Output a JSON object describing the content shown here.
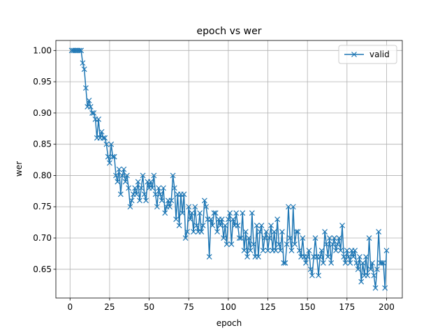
{
  "chart_data": {
    "type": "line",
    "title": "epoch vs wer",
    "xlabel": "epoch",
    "ylabel": "wer",
    "x": [
      1,
      2,
      3,
      4,
      5,
      6,
      7,
      8,
      9,
      10,
      11,
      12,
      13,
      14,
      15,
      16,
      17,
      18,
      19,
      20,
      21,
      22,
      23,
      24,
      25,
      26,
      27,
      28,
      29,
      30,
      31,
      32,
      33,
      34,
      35,
      36,
      37,
      38,
      39,
      40,
      41,
      42,
      43,
      44,
      45,
      46,
      47,
      48,
      49,
      50,
      51,
      52,
      53,
      54,
      55,
      56,
      57,
      58,
      59,
      60,
      61,
      62,
      63,
      64,
      65,
      66,
      67,
      68,
      69,
      70,
      71,
      72,
      73,
      74,
      75,
      76,
      77,
      78,
      79,
      80,
      81,
      82,
      83,
      84,
      85,
      86,
      87,
      88,
      89,
      90,
      91,
      92,
      93,
      94,
      95,
      96,
      97,
      98,
      99,
      100,
      101,
      102,
      103,
      104,
      105,
      106,
      107,
      108,
      109,
      110,
      111,
      112,
      113,
      114,
      115,
      116,
      117,
      118,
      119,
      120,
      121,
      122,
      123,
      124,
      125,
      126,
      127,
      128,
      129,
      130,
      131,
      132,
      133,
      134,
      135,
      136,
      137,
      138,
      139,
      140,
      141,
      142,
      143,
      144,
      145,
      146,
      147,
      148,
      149,
      150,
      151,
      152,
      153,
      154,
      155,
      156,
      157,
      158,
      159,
      160,
      161,
      162,
      163,
      164,
      165,
      166,
      167,
      168,
      169,
      170,
      171,
      172,
      173,
      174,
      175,
      176,
      177,
      178,
      179,
      180,
      181,
      182,
      183,
      184,
      185,
      186,
      187,
      188,
      189,
      190,
      191,
      192,
      193,
      194,
      195,
      196,
      197,
      198,
      199,
      200
    ],
    "series": [
      {
        "name": "valid",
        "color": "#1f77b4",
        "values": [
          1.0,
          1.0,
          1.0,
          1.0,
          1.0,
          1.0,
          1.0,
          0.98,
          0.97,
          0.94,
          0.91,
          0.92,
          0.91,
          0.9,
          0.9,
          0.89,
          0.86,
          0.89,
          0.86,
          0.87,
          0.86,
          0.86,
          0.85,
          0.83,
          0.82,
          0.85,
          0.83,
          0.83,
          0.8,
          0.79,
          0.81,
          0.77,
          0.8,
          0.81,
          0.79,
          0.8,
          0.78,
          0.75,
          0.76,
          0.77,
          0.78,
          0.77,
          0.79,
          0.76,
          0.78,
          0.8,
          0.77,
          0.76,
          0.79,
          0.78,
          0.79,
          0.78,
          0.8,
          0.77,
          0.75,
          0.78,
          0.77,
          0.76,
          0.78,
          0.74,
          0.75,
          0.76,
          0.75,
          0.76,
          0.8,
          0.78,
          0.73,
          0.77,
          0.72,
          0.77,
          0.74,
          0.77,
          0.7,
          0.71,
          0.75,
          0.73,
          0.74,
          0.71,
          0.75,
          0.72,
          0.71,
          0.74,
          0.71,
          0.72,
          0.76,
          0.75,
          0.73,
          0.67,
          0.73,
          0.72,
          0.74,
          0.74,
          0.71,
          0.73,
          0.72,
          0.73,
          0.7,
          0.72,
          0.69,
          0.73,
          0.74,
          0.69,
          0.73,
          0.72,
          0.74,
          0.72,
          0.7,
          0.7,
          0.74,
          0.68,
          0.71,
          0.67,
          0.7,
          0.68,
          0.74,
          0.69,
          0.67,
          0.72,
          0.67,
          0.71,
          0.72,
          0.68,
          0.7,
          0.71,
          0.68,
          0.7,
          0.72,
          0.68,
          0.71,
          0.68,
          0.73,
          0.69,
          0.68,
          0.71,
          0.66,
          0.66,
          0.69,
          0.75,
          0.7,
          0.68,
          0.75,
          0.69,
          0.71,
          0.71,
          0.68,
          0.67,
          0.7,
          0.67,
          0.66,
          0.67,
          0.68,
          0.65,
          0.64,
          0.67,
          0.7,
          0.67,
          0.64,
          0.67,
          0.68,
          0.66,
          0.71,
          0.69,
          0.67,
          0.7,
          0.66,
          0.69,
          0.7,
          0.68,
          0.69,
          0.7,
          0.68,
          0.72,
          0.67,
          0.66,
          0.68,
          0.67,
          0.66,
          0.68,
          0.67,
          0.68,
          0.66,
          0.65,
          0.67,
          0.63,
          0.66,
          0.64,
          0.67,
          0.64,
          0.7,
          0.65,
          0.66,
          0.64,
          0.62,
          0.65,
          0.71,
          0.66,
          0.66,
          0.66,
          0.62,
          0.68
        ]
      }
    ],
    "xlim": [
      -8.95,
      209.95
    ],
    "ylim": [
      0.604,
      1.016
    ],
    "xticks": [
      0,
      25,
      50,
      75,
      100,
      125,
      150,
      175,
      200
    ],
    "yticks": [
      0.65,
      {
        "value": 0.7,
        "label": "0.70"
      },
      0.75,
      {
        "value": 0.8,
        "label": "0.80"
      },
      0.85,
      {
        "value": 0.9,
        "label": "0.90"
      },
      0.95,
      {
        "value": 1.0,
        "label": "1.00"
      }
    ],
    "grid": true,
    "legend": "upper right"
  }
}
